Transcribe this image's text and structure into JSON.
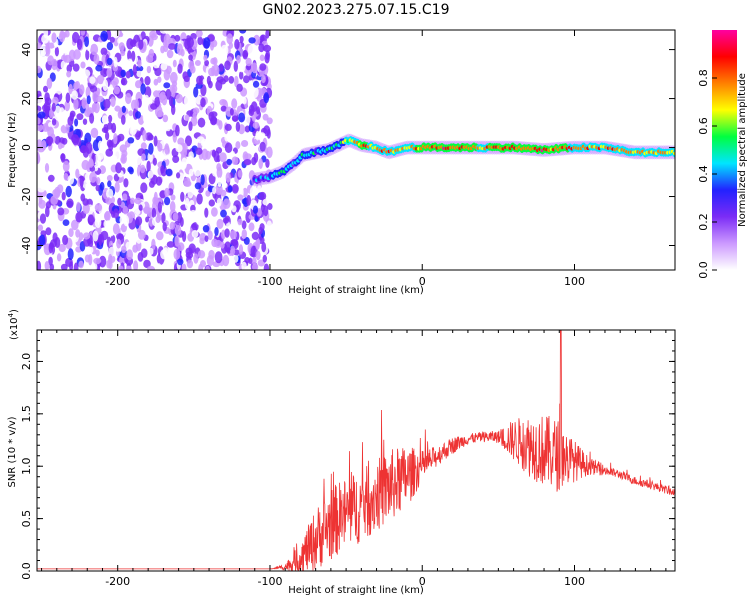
{
  "figure": {
    "title": "GN02.2023.275.07.15.C19"
  },
  "chart_data": [
    {
      "type": "heatmap",
      "name": "spectrogram",
      "xlabel": "Height of straight line (km)",
      "ylabel": "Frequency (Hz)",
      "xlim": [
        -253,
        166
      ],
      "ylim": [
        -50,
        48
      ],
      "xticks": [
        -200,
        -100,
        0,
        100
      ],
      "yticks": [
        -40,
        -20,
        0,
        20,
        40
      ],
      "noise_region_x": [
        -253,
        -100
      ],
      "noise_level_range": [
        0.0,
        0.3
      ],
      "ridge": [
        {
          "x": -110,
          "y": -13,
          "level": 0.45
        },
        {
          "x": -100,
          "y": -12,
          "level": 0.5
        },
        {
          "x": -92,
          "y": -10,
          "level": 0.6
        },
        {
          "x": -85,
          "y": -7,
          "level": 0.5
        },
        {
          "x": -78,
          "y": -3,
          "level": 0.55
        },
        {
          "x": -70,
          "y": -2,
          "level": 0.5
        },
        {
          "x": -62,
          "y": -1,
          "level": 0.55
        },
        {
          "x": -55,
          "y": 1,
          "level": 0.6
        },
        {
          "x": -48,
          "y": 3,
          "level": 0.75
        },
        {
          "x": -40,
          "y": 1,
          "level": 0.95
        },
        {
          "x": -30,
          "y": 0,
          "level": 0.85
        },
        {
          "x": -22,
          "y": -2,
          "level": 0.9
        },
        {
          "x": -10,
          "y": 0,
          "level": 0.85
        },
        {
          "x": 0,
          "y": 0,
          "level": 0.95
        },
        {
          "x": 20,
          "y": 0,
          "level": 0.95
        },
        {
          "x": 40,
          "y": 0,
          "level": 0.9
        },
        {
          "x": 60,
          "y": 0,
          "level": 0.95
        },
        {
          "x": 80,
          "y": -1,
          "level": 0.95
        },
        {
          "x": 100,
          "y": 0,
          "level": 0.9
        },
        {
          "x": 120,
          "y": 0,
          "level": 0.9
        },
        {
          "x": 140,
          "y": -2,
          "level": 0.85
        },
        {
          "x": 166,
          "y": -2,
          "level": 0.8
        }
      ],
      "colorbar": {
        "label": "Normalized spectral amplitude",
        "ticks": [
          "0.0",
          "0.2",
          "0.4",
          "0.6",
          "0.8"
        ],
        "range": [
          0,
          1
        ],
        "colormap": [
          "#ffffff",
          "#cc99ff",
          "#7b2cf6",
          "#2222ff",
          "#00e5ff",
          "#00ff40",
          "#ffff00",
          "#ff8000",
          "#ff0000",
          "#ff00a0"
        ]
      }
    },
    {
      "type": "line",
      "name": "snr",
      "xlabel": "Height of straight line (km)",
      "ylabel": "SNR (10 * v/v)",
      "scale_label_main": "(x10",
      "scale_label_exp": "4",
      "scale_label_end": ")",
      "xlim": [
        -253,
        166
      ],
      "ylim": [
        0,
        2.3
      ],
      "xticks": [
        -200,
        -100,
        0,
        100
      ],
      "yticks": [
        "0.0",
        "0.5",
        "1.0",
        "1.5",
        "2.0"
      ],
      "color": "#ee3333",
      "envelope": {
        "x": [
          -253,
          -100,
          -90,
          -80,
          -70,
          -60,
          -50,
          -40,
          -30,
          -20,
          -10,
          0,
          10,
          20,
          30,
          40,
          50,
          60,
          70,
          80,
          90,
          100,
          110,
          120,
          130,
          140,
          150,
          166
        ],
        "y": [
          0.02,
          0.02,
          0.04,
          0.12,
          0.3,
          0.45,
          0.55,
          0.62,
          0.72,
          0.82,
          0.9,
          1.0,
          1.1,
          1.2,
          1.26,
          1.28,
          1.28,
          1.25,
          1.2,
          1.15,
          1.1,
          1.05,
          1.0,
          0.96,
          0.92,
          0.86,
          0.82,
          0.75
        ],
        "scatter": [
          0.0,
          0.0,
          0.03,
          0.15,
          0.3,
          0.35,
          0.35,
          0.35,
          0.35,
          0.35,
          0.3,
          0.15,
          0.1,
          0.08,
          0.05,
          0.05,
          0.06,
          0.2,
          0.3,
          0.35,
          0.35,
          0.2,
          0.08,
          0.05,
          0.04,
          0.04,
          0.04,
          0.04
        ]
      },
      "peak": {
        "x": 91,
        "y": 2.3
      }
    }
  ]
}
